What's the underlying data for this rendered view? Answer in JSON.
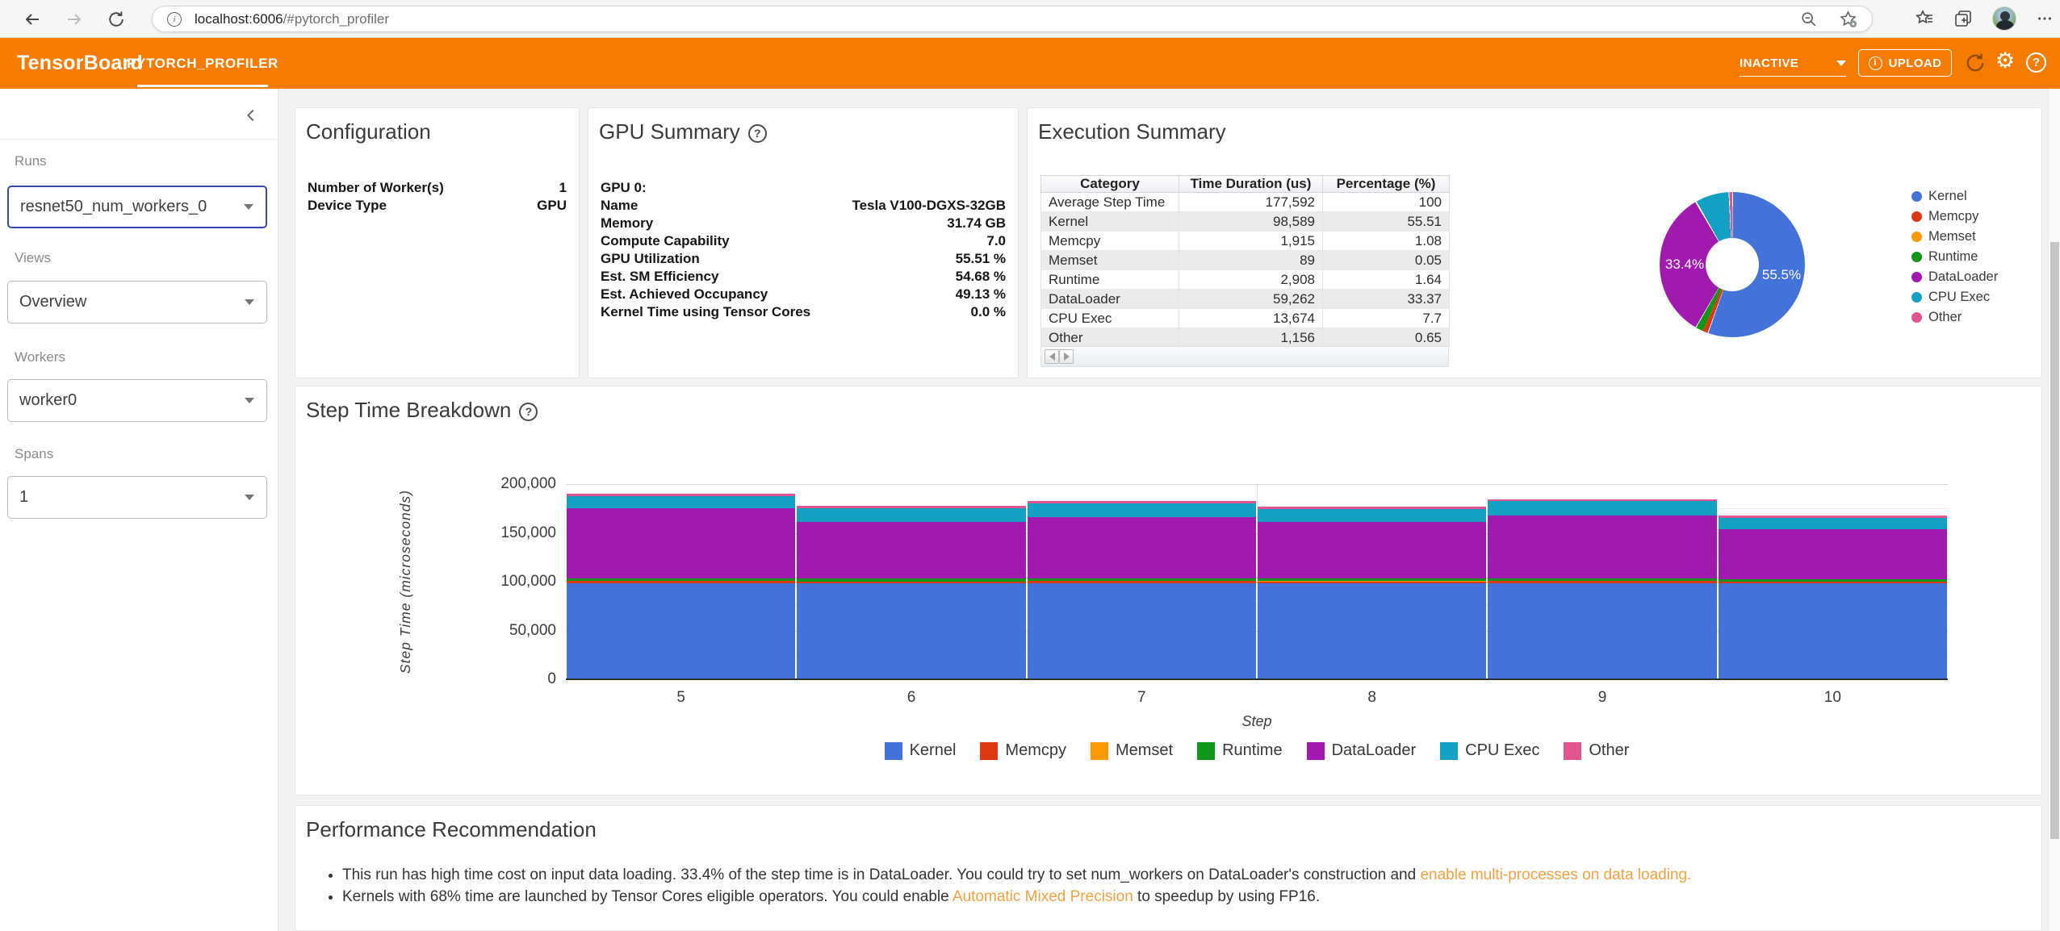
{
  "browser": {
    "url_host": "localhost:6006",
    "url_rest": "/#pytorch_profiler"
  },
  "header": {
    "brand": "TensorBoard",
    "tab": "PYTORCH_PROFILER",
    "status_dropdown": "INACTIVE",
    "upload_label": "UPLOAD",
    "accent_color": "#f57c00"
  },
  "sidebar": {
    "runs_label": "Runs",
    "runs_value": "resnet50_num_workers_0",
    "views_label": "Views",
    "views_value": "Overview",
    "workers_label": "Workers",
    "workers_value": "worker0",
    "spans_label": "Spans",
    "spans_value": "1"
  },
  "configuration": {
    "title": "Configuration",
    "rows": [
      {
        "label": "Number of Worker(s)",
        "value": "1"
      },
      {
        "label": "Device Type",
        "value": "GPU"
      }
    ]
  },
  "gpu_summary": {
    "title": "GPU Summary",
    "rows": [
      {
        "label": "GPU 0:",
        "value": ""
      },
      {
        "label": "Name",
        "value": "Tesla V100-DGXS-32GB"
      },
      {
        "label": "Memory",
        "value": "31.74 GB"
      },
      {
        "label": "Compute Capability",
        "value": "7.0"
      },
      {
        "label": "GPU Utilization",
        "value": "55.51 %"
      },
      {
        "label": "Est. SM Efficiency",
        "value": "54.68 %"
      },
      {
        "label": "Est. Achieved Occupancy",
        "value": "49.13 %"
      },
      {
        "label": "Kernel Time using Tensor Cores",
        "value": "0.0 %"
      }
    ]
  },
  "execution_summary": {
    "title": "Execution Summary",
    "table": {
      "headers": [
        "Category",
        "Time Duration (us)",
        "Percentage (%)"
      ],
      "rows": [
        [
          "Average Step Time",
          "177,592",
          "100"
        ],
        [
          "Kernel",
          "98,589",
          "55.51"
        ],
        [
          "Memcpy",
          "1,915",
          "1.08"
        ],
        [
          "Memset",
          "89",
          "0.05"
        ],
        [
          "Runtime",
          "2,908",
          "1.64"
        ],
        [
          "DataLoader",
          "59,262",
          "33.37"
        ],
        [
          "CPU Exec",
          "13,674",
          "7.7"
        ],
        [
          "Other",
          "1,156",
          "0.65"
        ]
      ]
    }
  },
  "performance_recommendation": {
    "title": "Performance Recommendation",
    "bullets": [
      {
        "text": "This run has high time cost on input data loading. 33.4% of the step time is in DataLoader. You could try to set num_workers on DataLoader's construction and ",
        "link": "enable multi-processes on data loading.",
        "text_after": ""
      },
      {
        "text": "Kernels with 68% time are launched by Tensor Cores eligible operators. You could enable ",
        "link": "Automatic Mixed Precision",
        "text_after": " to speedup by using FP16."
      }
    ],
    "link_color": "#f2a143"
  },
  "colors": {
    "Kernel": "#4373d9",
    "Memcpy": "#dc3912",
    "Memset": "#ff9900",
    "Runtime": "#109618",
    "DataLoader": "#a119ae",
    "CPU Exec": "#14a0c2",
    "Other": "#e0558f"
  },
  "icons": {
    "gear-icon": "⚙",
    "more-icon": "⋯",
    "collapse-icon": "‹"
  },
  "chart_data": [
    {
      "type": "pie",
      "title": "Execution Summary",
      "donut": true,
      "categories": [
        "Kernel",
        "Memcpy",
        "Memset",
        "Runtime",
        "DataLoader",
        "CPU Exec",
        "Other"
      ],
      "values": [
        55.51,
        1.08,
        0.05,
        1.64,
        33.37,
        7.7,
        0.65
      ],
      "visible_labels": [
        "55.5%",
        "33.4%"
      ],
      "legend_position": "right"
    },
    {
      "type": "bar",
      "stacked": true,
      "title": "Step Time Breakdown",
      "xlabel": "Step",
      "ylabel": "Step Time (microseconds)",
      "x": [
        5,
        6,
        7,
        8,
        9,
        10
      ],
      "ylim": [
        0,
        200000
      ],
      "yticks": [
        "0",
        "50,000",
        "100,000",
        "150,000",
        "200,000"
      ],
      "grid": true,
      "legend_position": "bottom",
      "series": [
        {
          "name": "Kernel",
          "values": [
            98600,
            98300,
            98600,
            98500,
            98700,
            98000
          ]
        },
        {
          "name": "Memcpy",
          "values": [
            1900,
            1900,
            1900,
            1900,
            1900,
            1900
          ]
        },
        {
          "name": "Memset",
          "values": [
            90,
            90,
            90,
            90,
            90,
            90
          ]
        },
        {
          "name": "Runtime",
          "values": [
            2900,
            2900,
            2900,
            2900,
            2900,
            2900
          ]
        },
        {
          "name": "DataLoader",
          "values": [
            72000,
            58000,
            63000,
            57500,
            64000,
            50500
          ]
        },
        {
          "name": "CPU Exec",
          "values": [
            12400,
            14200,
            13800,
            13800,
            14900,
            12100
          ]
        },
        {
          "name": "Other",
          "values": [
            2000,
            2000,
            2200,
            2100,
            2200,
            2000
          ]
        }
      ]
    }
  ]
}
